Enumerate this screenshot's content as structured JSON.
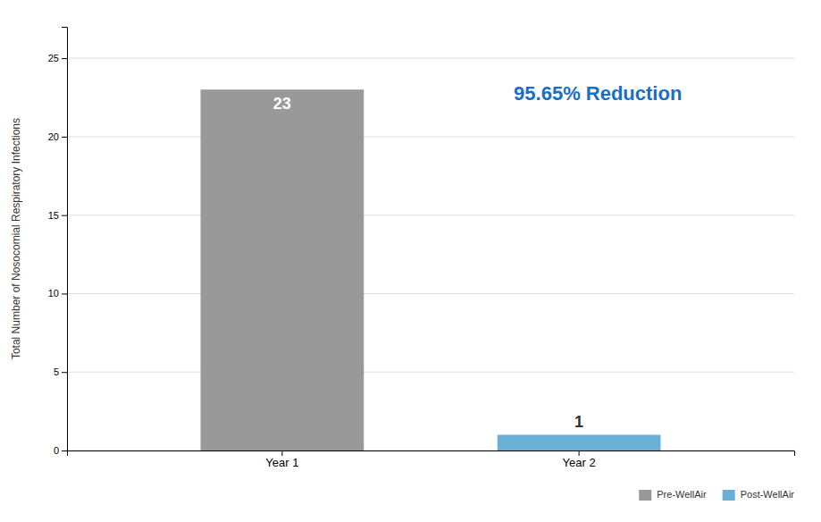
{
  "chart_data": {
    "type": "bar",
    "categories": [
      "Year 1",
      "Year 2"
    ],
    "series": [
      {
        "name": "Pre-WellAir",
        "color": "#999999",
        "values": [
          23,
          null
        ]
      },
      {
        "name": "Post-WellAir",
        "color": "#6ab0d4",
        "values": [
          null,
          1
        ]
      }
    ],
    "ylabel": "Total Number of Nosocomial Respiratory Infections",
    "annotation": "95.65% Reduction",
    "ylim": [
      0,
      27
    ],
    "yticks": [
      0,
      5,
      10,
      15,
      20,
      25
    ],
    "grid": true,
    "legend": "lower right",
    "data_labels": true
  }
}
